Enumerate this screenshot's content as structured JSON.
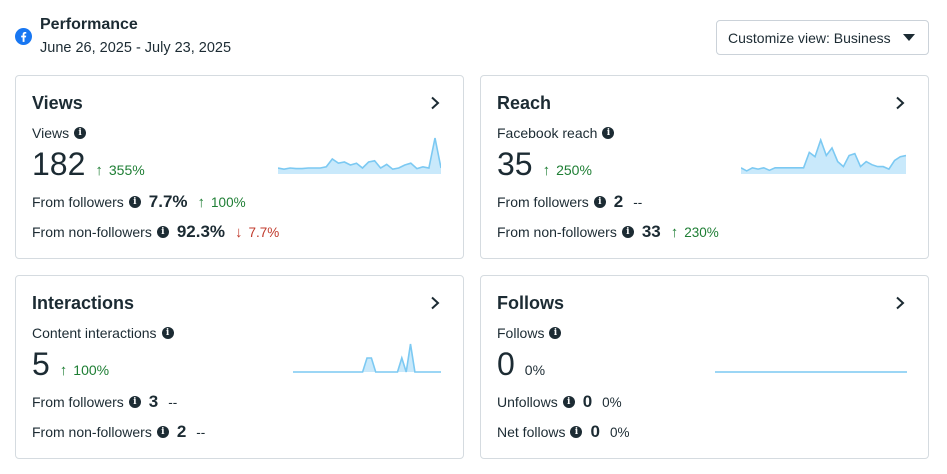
{
  "header": {
    "title": "Performance",
    "date_range": "June 26, 2025 - July 23, 2025",
    "customize_label": "Customize view: Business"
  },
  "colors": {
    "up": "#1e7e34",
    "down": "#c0392b",
    "spark_line": "#7cc9f2",
    "spark_fill": "#c9e9fb",
    "brand": "#1877f2"
  },
  "cards": {
    "views": {
      "title": "Views",
      "metric_label": "Views",
      "value": "182",
      "delta": "355%",
      "delta_dir": "up",
      "rows": [
        {
          "label": "From followers",
          "value": "7.7%",
          "delta": "100%",
          "dir": "up"
        },
        {
          "label": "From non-followers",
          "value": "92.3%",
          "delta": "7.7%",
          "dir": "down"
        }
      ]
    },
    "reach": {
      "title": "Reach",
      "metric_label": "Facebook reach",
      "value": "35",
      "delta": "250%",
      "delta_dir": "up",
      "rows": [
        {
          "label": "From followers",
          "value": "2",
          "delta": "--",
          "dir": "neutral"
        },
        {
          "label": "From non-followers",
          "value": "33",
          "delta": "230%",
          "dir": "up"
        }
      ]
    },
    "interactions": {
      "title": "Interactions",
      "metric_label": "Content interactions",
      "value": "5",
      "delta": "100%",
      "delta_dir": "up",
      "rows": [
        {
          "label": "From followers",
          "value": "3",
          "delta": "--",
          "dir": "neutral"
        },
        {
          "label": "From non-followers",
          "value": "2",
          "delta": "--",
          "dir": "neutral"
        }
      ]
    },
    "follows": {
      "title": "Follows",
      "metric_label": "Follows",
      "value": "0",
      "delta": "0%",
      "delta_dir": "neutral",
      "rows": [
        {
          "label": "Unfollows",
          "value": "0",
          "delta": "0%",
          "dir": "neutral"
        },
        {
          "label": "Net follows",
          "value": "0",
          "delta": "0%",
          "dir": "neutral"
        }
      ]
    }
  },
  "sparklines": {
    "views": [
      1,
      0.8,
      1,
      0.9,
      0.9,
      1,
      1,
      1,
      1.2,
      2.5,
      1.8,
      2,
      1.5,
      1.8,
      1,
      2,
      2.2,
      1,
      1.6,
      0.8,
      1,
      1.5,
      1.8,
      0.9,
      1.2,
      1,
      6,
      1
    ],
    "reach": [
      1,
      0.5,
      1,
      0.8,
      1,
      0.6,
      1,
      1,
      1,
      1,
      1,
      1,
      3.5,
      2.8,
      5.5,
      3,
      4.2,
      2,
      1.2,
      3,
      3.3,
      1.2,
      2,
      1.5,
      1.2,
      1.2,
      0.8,
      2.2,
      2.8,
      3
    ],
    "interactions": [
      0,
      0,
      0,
      0,
      0,
      0,
      0,
      0,
      0,
      0,
      0,
      0,
      0,
      0,
      0,
      0,
      0,
      1,
      1,
      0,
      0,
      0,
      0,
      0,
      0,
      1,
      0,
      2,
      0,
      0,
      0,
      0,
      0,
      0,
      0
    ],
    "follows": [
      0,
      0,
      0,
      0,
      0,
      0,
      0,
      0,
      0,
      0,
      0
    ]
  }
}
